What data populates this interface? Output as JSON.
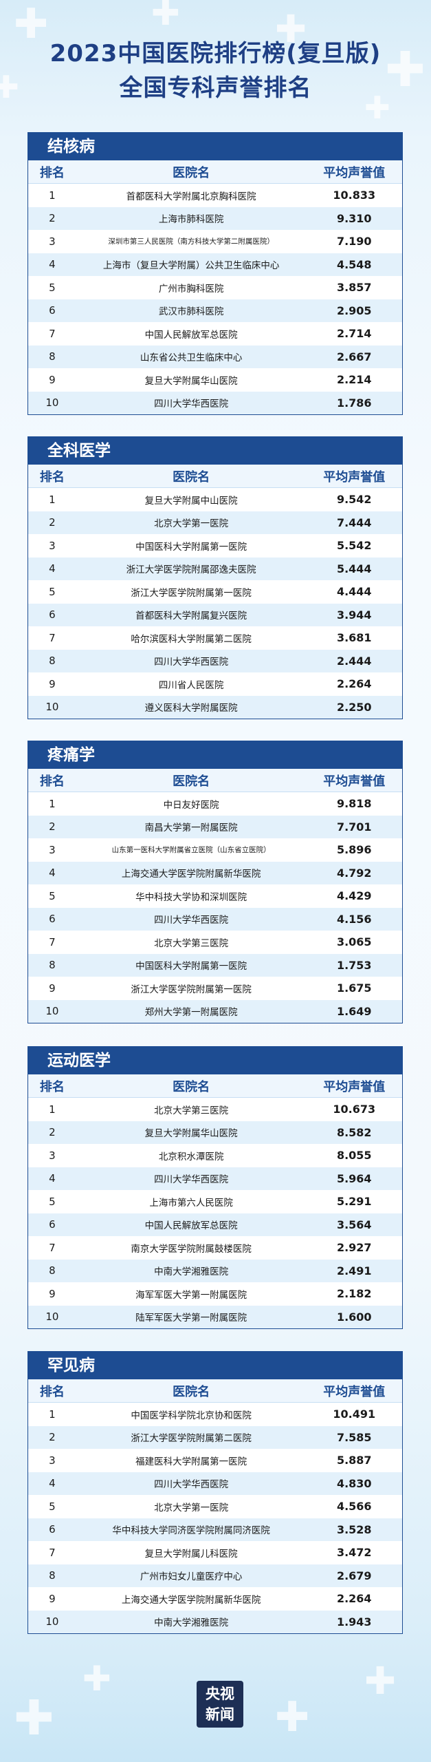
{
  "title_line1": "2023中国医院排行榜(复旦版)",
  "title_line2": "全国专科声誉排名",
  "header": {
    "rank": "排名",
    "hospital": "医院名",
    "score": "平均声誉值"
  },
  "logo": {
    "line1": "央视",
    "line2": "新闻"
  },
  "sections": [
    {
      "name": "结核病",
      "rows": [
        {
          "rank": "1",
          "hospital": "首都医科大学附属北京胸科医院",
          "score": "10.833"
        },
        {
          "rank": "2",
          "hospital": "上海市肺科医院",
          "score": "9.310"
        },
        {
          "rank": "3",
          "hospital": "深圳市第三人民医院（南方科技大学第二附属医院）",
          "score": "7.190"
        },
        {
          "rank": "4",
          "hospital": "上海市（复旦大学附属）公共卫生临床中心",
          "score": "4.548"
        },
        {
          "rank": "5",
          "hospital": "广州市胸科医院",
          "score": "3.857"
        },
        {
          "rank": "6",
          "hospital": "武汉市肺科医院",
          "score": "2.905"
        },
        {
          "rank": "7",
          "hospital": "中国人民解放军总医院",
          "score": "2.714"
        },
        {
          "rank": "8",
          "hospital": "山东省公共卫生临床中心",
          "score": "2.667"
        },
        {
          "rank": "9",
          "hospital": "复旦大学附属华山医院",
          "score": "2.214"
        },
        {
          "rank": "10",
          "hospital": "四川大学华西医院",
          "score": "1.786"
        }
      ]
    },
    {
      "name": "全科医学",
      "rows": [
        {
          "rank": "1",
          "hospital": "复旦大学附属中山医院",
          "score": "9.542"
        },
        {
          "rank": "2",
          "hospital": "北京大学第一医院",
          "score": "7.444"
        },
        {
          "rank": "3",
          "hospital": "中国医科大学附属第一医院",
          "score": "5.542"
        },
        {
          "rank": "4",
          "hospital": "浙江大学医学院附属邵逸夫医院",
          "score": "5.444"
        },
        {
          "rank": "5",
          "hospital": "浙江大学医学院附属第一医院",
          "score": "4.444"
        },
        {
          "rank": "6",
          "hospital": "首都医科大学附属复兴医院",
          "score": "3.944"
        },
        {
          "rank": "7",
          "hospital": "哈尔滨医科大学附属第二医院",
          "score": "3.681"
        },
        {
          "rank": "8",
          "hospital": "四川大学华西医院",
          "score": "2.444"
        },
        {
          "rank": "9",
          "hospital": "四川省人民医院",
          "score": "2.264"
        },
        {
          "rank": "10",
          "hospital": "遵义医科大学附属医院",
          "score": "2.250"
        }
      ]
    },
    {
      "name": "疼痛学",
      "rows": [
        {
          "rank": "1",
          "hospital": "中日友好医院",
          "score": "9.818"
        },
        {
          "rank": "2",
          "hospital": "南昌大学第一附属医院",
          "score": "7.701"
        },
        {
          "rank": "3",
          "hospital": "山东第一医科大学附属省立医院（山东省立医院）",
          "score": "5.896"
        },
        {
          "rank": "4",
          "hospital": "上海交通大学医学院附属新华医院",
          "score": "4.792"
        },
        {
          "rank": "5",
          "hospital": "华中科技大学协和深圳医院",
          "score": "4.429"
        },
        {
          "rank": "6",
          "hospital": "四川大学华西医院",
          "score": "4.156"
        },
        {
          "rank": "7",
          "hospital": "北京大学第三医院",
          "score": "3.065"
        },
        {
          "rank": "8",
          "hospital": "中国医科大学附属第一医院",
          "score": "1.753"
        },
        {
          "rank": "9",
          "hospital": "浙江大学医学院附属第一医院",
          "score": "1.675"
        },
        {
          "rank": "10",
          "hospital": "郑州大学第一附属医院",
          "score": "1.649"
        }
      ]
    },
    {
      "name": "运动医学",
      "rows": [
        {
          "rank": "1",
          "hospital": "北京大学第三医院",
          "score": "10.673"
        },
        {
          "rank": "2",
          "hospital": "复旦大学附属华山医院",
          "score": "8.582"
        },
        {
          "rank": "3",
          "hospital": "北京积水潭医院",
          "score": "8.055"
        },
        {
          "rank": "4",
          "hospital": "四川大学华西医院",
          "score": "5.964"
        },
        {
          "rank": "5",
          "hospital": "上海市第六人民医院",
          "score": "5.291"
        },
        {
          "rank": "6",
          "hospital": "中国人民解放军总医院",
          "score": "3.564"
        },
        {
          "rank": "7",
          "hospital": "南京大学医学院附属鼓楼医院",
          "score": "2.927"
        },
        {
          "rank": "8",
          "hospital": "中南大学湘雅医院",
          "score": "2.491"
        },
        {
          "rank": "9",
          "hospital": "海军军医大学第一附属医院",
          "score": "2.182"
        },
        {
          "rank": "10",
          "hospital": "陆军军医大学第一附属医院",
          "score": "1.600"
        }
      ]
    },
    {
      "name": "罕见病",
      "rows": [
        {
          "rank": "1",
          "hospital": "中国医学科学院北京协和医院",
          "score": "10.491"
        },
        {
          "rank": "2",
          "hospital": "浙江大学医学院附属第二医院",
          "score": "7.585"
        },
        {
          "rank": "3",
          "hospital": "福建医科大学附属第一医院",
          "score": "5.887"
        },
        {
          "rank": "4",
          "hospital": "四川大学华西医院",
          "score": "4.830"
        },
        {
          "rank": "5",
          "hospital": "北京大学第一医院",
          "score": "4.566"
        },
        {
          "rank": "6",
          "hospital": "华中科技大学同济医学院附属同济医院",
          "score": "3.528"
        },
        {
          "rank": "7",
          "hospital": "复旦大学附属儿科医院",
          "score": "3.472"
        },
        {
          "rank": "8",
          "hospital": "广州市妇女儿童医疗中心",
          "score": "2.679"
        },
        {
          "rank": "9",
          "hospital": "上海交通大学医学院附属新华医院",
          "score": "2.264"
        },
        {
          "rank": "10",
          "hospital": "中南大学湘雅医院",
          "score": "1.943"
        }
      ]
    }
  ]
}
